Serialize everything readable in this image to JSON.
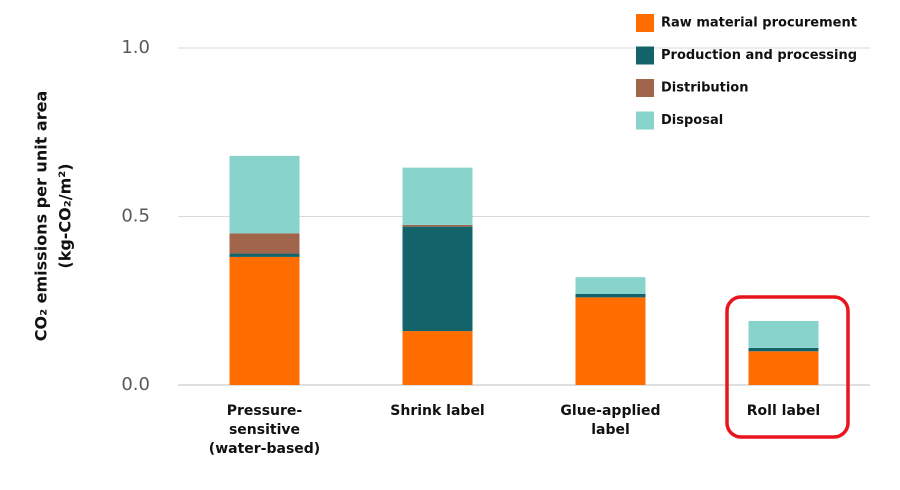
{
  "chart_data": {
    "type": "stacked_bar",
    "y_label": [
      "CO₂ emissions per unit area",
      "(kg-CO₂/m²)"
    ],
    "categories": [
      [
        "Pressure-",
        "sensitive",
        "(water-based)"
      ],
      [
        "Shrink label"
      ],
      [
        "Glue-applied",
        "label"
      ],
      [
        "Roll  label"
      ]
    ],
    "series": [
      {
        "name": "Raw material procurement",
        "color": "#ff6d00",
        "values": [
          0.38,
          0.16,
          0.26,
          0.1
        ]
      },
      {
        "name": "Production and processing",
        "color": "#12646a",
        "values": [
          0.01,
          0.31,
          0.01,
          0.01
        ]
      },
      {
        "name": "Distribution",
        "color": "#a0654a",
        "values": [
          0.06,
          0.005,
          0,
          0
        ]
      },
      {
        "name": "Disposal",
        "color": "#88d4cc",
        "values": [
          0.23,
          0.17,
          0.05,
          0.08
        ]
      }
    ],
    "ylim": [
      0,
      1.0
    ],
    "yticks": [
      {
        "value": 0,
        "label": "0.0"
      },
      {
        "value": 0.5,
        "label": "0.5"
      },
      {
        "value": 1.0,
        "label": "1.0"
      }
    ],
    "grid": true,
    "legend": "upper right"
  }
}
